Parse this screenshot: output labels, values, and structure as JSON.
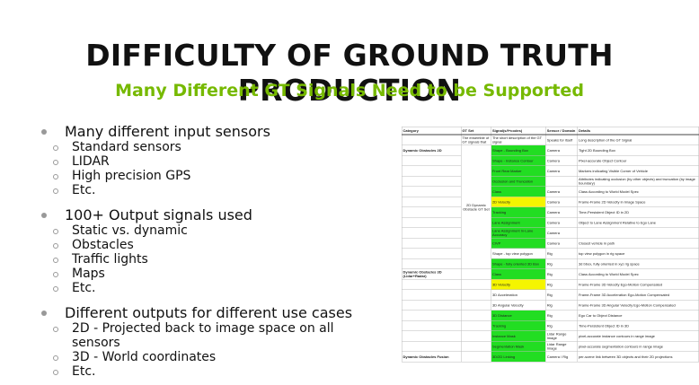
{
  "header": {
    "title": "DIFFICULTY OF GROUND TRUTH PRODUCTION",
    "subtitle": "Many Different GT Signals Need to be Supported"
  },
  "bullets": [
    {
      "text": "Many different input sensors",
      "sub": [
        "Standard sensors",
        "LIDAR",
        "High precision GPS",
        "Etc."
      ]
    },
    {
      "text": "100+ Output signals used",
      "sub": [
        "Static vs. dynamic",
        "Obstacles",
        "Traffic lights",
        "Maps",
        "Etc."
      ]
    },
    {
      "text": "Different outputs for different use cases",
      "sub": [
        "2D - Projected back to image space on all sensors",
        "3D - World coordinates",
        "Etc."
      ]
    }
  ],
  "table": {
    "header": [
      "Category",
      "GT Set",
      "Signal(s/f+codes)",
      "Sensor / Domain",
      "Details"
    ],
    "subheader": {
      "gt_set": "The ensemble of GT signals that",
      "signal": "The short description of the GT signal",
      "sensor": "Speaks for itself",
      "details": "Long description of the GT Signal"
    },
    "gt_set": "2D Dynamic Obstacle GT Set",
    "rows": [
      {
        "category": "Dynamic Obstacles 2D",
        "signal": "Shape - Bounding Box",
        "sensor": "Camera",
        "details": "Tight 2D Bounding Box",
        "fill": "#22dd22"
      },
      {
        "signal": "Shape - Instance Contour",
        "sensor": "Camera",
        "details": "Pixel-accurate Object Contour",
        "fill": "#22dd22"
      },
      {
        "signal": "Front Rear Marker",
        "sensor": "Camera",
        "details": "Markers indicating Visible Corner of Vehicle",
        "fill": "#22dd22"
      },
      {
        "signal": "Occlusion and Truncation",
        "details": "Attributes indicating occlusion (by other objects) and truncation (by image boundary)",
        "fill": "#22dd22"
      },
      {
        "signal": "Class",
        "sensor": "Camera",
        "details": "Class According to World Model Spec",
        "fill": "#22dd22"
      },
      {
        "signal": "2D Velocity",
        "sensor": "Camera",
        "details": "Frame-Frame 2D Velocity in Image Space",
        "fill": "#f5f500"
      },
      {
        "signal": "Tracking",
        "sensor": "Camera",
        "details": "Time-Persistent Object ID in 2D",
        "fill": "#22dd22"
      },
      {
        "signal": "Lane Assignment",
        "sensor": "Camera",
        "details": "Object to Lane Assignment Relative to Ego Lane",
        "fill": "#22dd22"
      },
      {
        "signal": "Lane Assignment In-Lane Accuracy",
        "sensor": "Camera",
        "fill": "#22dd22"
      },
      {
        "signal": "CIVP",
        "sensor": "Camera",
        "details": "Closest vehicle in path",
        "fill": "#22dd22"
      },
      {
        "signal": "Shape - top view polygon",
        "sensor": "Rig",
        "details": "top view polygon in rig space",
        "fill": "#ffffff"
      },
      {
        "signal": "Shape - fully oriented 3D Box",
        "sensor": "Rig",
        "details": "3d bbox, fully oriented in xyz rig space",
        "fill": "#22dd22"
      },
      {
        "category": "Dynamic Obstacles 3D (Lidar+Radar)",
        "signal": "Class",
        "sensor": "Rig",
        "details": "Class According to World Model Spec",
        "fill": "#22dd22"
      },
      {
        "signal": "3D Velocity",
        "sensor": "Rig",
        "details": "Frame-Frame 3D Velocity Ego-Motion Compensated",
        "fill": "#f5f500"
      },
      {
        "signal": "3D Acceleration",
        "sensor": "Rig",
        "details": "Frame-Frame 3D Acceleration Ego-Motion Compensated",
        "fill": "#ffffff"
      },
      {
        "signal": "3D Angular Velocity",
        "sensor": "Rig",
        "details": "Frame-Frame 3D Angular Velocity Ego-Motion Compensated",
        "fill": "#ffffff"
      },
      {
        "signal": "3D Distance",
        "sensor": "Rig",
        "details": "Ego Car to Object Distance",
        "fill": "#22dd22"
      },
      {
        "signal": "Tracking",
        "sensor": "Rig",
        "details": "Time-Persistent Object ID in 3D",
        "fill": "#22dd22"
      },
      {
        "signal": "Instance Mask",
        "sensor": "Lidar Range Image",
        "details": "pixel-accurate instance contours in range image",
        "fill": "#22dd22"
      },
      {
        "signal": "Segmentation Mask",
        "sensor": "Lidar Range Image",
        "details": "pixel-accurate segmentation contours in range image",
        "fill": "#22dd22"
      },
      {
        "category": "Dynamic Obstacles Fusion",
        "signal": "3D/2D Linking",
        "sensor": "Camera / Rig",
        "details": "per-scene link between 3D objects and their 2D projections",
        "fill": "#22dd22"
      }
    ]
  }
}
